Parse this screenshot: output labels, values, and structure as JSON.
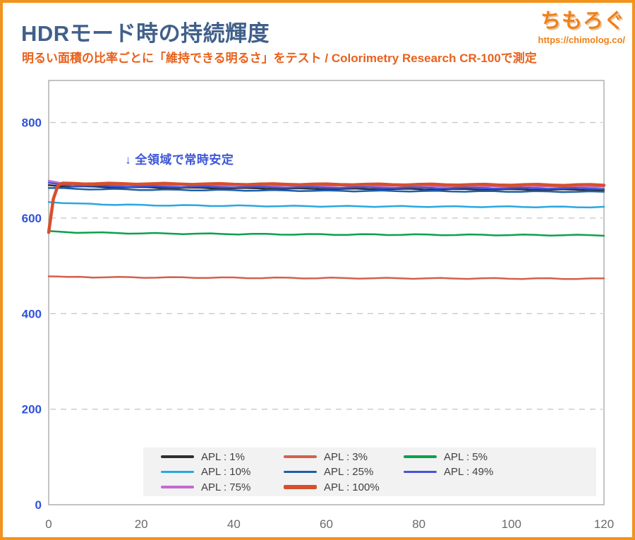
{
  "page": {
    "border_color": "#f0941f",
    "background": "#ffffff"
  },
  "header": {
    "title": "HDRモード時の持続輝度",
    "title_color": "#41608a",
    "subtitle": "明るい面積の比率ごとに「維持できる明るさ」をテスト / Colorimetry Research CR-100で測定",
    "subtitle_color": "#e8611c",
    "logo": {
      "text": "ちもろぐ",
      "url": "https://chimolog.co/",
      "color": "#f08119"
    }
  },
  "chart_data": {
    "type": "line",
    "title": "HDRモード時の持続輝度 (nits) vs 時間",
    "xlabel": "",
    "ylabel": "",
    "xlim": [
      0,
      120
    ],
    "ylim": [
      0,
      888
    ],
    "x_ticks": [
      0,
      20,
      40,
      60,
      80,
      100,
      120
    ],
    "y_ticks": [
      0,
      200,
      400,
      600,
      800
    ],
    "grid": "horizontal-dashed",
    "grid_color": "#c9c9c9",
    "frame_color": "#b0b0b0",
    "y_tick_color": "#2f52d9",
    "x_tick_color": "#6a6a6a",
    "legend_position": "bottom-inside",
    "annotation": {
      "text": "↓ 全領域で常時安定",
      "color": "#3d56d6",
      "x": 16.5,
      "y": 728
    },
    "series": [
      {
        "name": "APL : 1%",
        "color": "#2e2e2e",
        "width": 2.5,
        "points": [
          [
            0,
            669
          ],
          [
            2,
            667
          ],
          [
            10,
            665
          ],
          [
            30,
            663
          ],
          [
            60,
            661
          ],
          [
            90,
            660
          ],
          [
            120,
            659
          ]
        ]
      },
      {
        "name": "APL : 3%",
        "color": "#d2614c",
        "width": 2.5,
        "points": [
          [
            0,
            478
          ],
          [
            4,
            477
          ],
          [
            15,
            476
          ],
          [
            40,
            475
          ],
          [
            70,
            474
          ],
          [
            120,
            473
          ]
        ]
      },
      {
        "name": "APL : 5%",
        "color": "#0da04e",
        "width": 2.5,
        "points": [
          [
            0,
            572
          ],
          [
            6,
            570
          ],
          [
            20,
            568
          ],
          [
            50,
            566
          ],
          [
            85,
            565
          ],
          [
            120,
            564
          ]
        ]
      },
      {
        "name": "APL : 10%",
        "color": "#2aa7e0",
        "width": 2.5,
        "points": [
          [
            0,
            634
          ],
          [
            6,
            630
          ],
          [
            20,
            627
          ],
          [
            50,
            625
          ],
          [
            85,
            624
          ],
          [
            120,
            623
          ]
        ]
      },
      {
        "name": "APL : 25%",
        "color": "#1d5fa9",
        "width": 2.5,
        "points": [
          [
            0,
            663
          ],
          [
            6,
            661
          ],
          [
            25,
            659
          ],
          [
            60,
            657
          ],
          [
            90,
            656
          ],
          [
            120,
            655
          ]
        ]
      },
      {
        "name": "APL : 49%",
        "color": "#4554d8",
        "width": 2.5,
        "points": [
          [
            0,
            673
          ],
          [
            5,
            668
          ],
          [
            20,
            666
          ],
          [
            60,
            664
          ],
          [
            120,
            662
          ]
        ]
      },
      {
        "name": "APL : 75%",
        "color": "#c469cc",
        "width": 2.5,
        "points": [
          [
            0,
            678
          ],
          [
            4,
            671
          ],
          [
            15,
            669
          ],
          [
            60,
            667
          ],
          [
            120,
            665
          ]
        ]
      },
      {
        "name": "APL : 100%",
        "color": "#d6502d",
        "width": 4.5,
        "points": [
          [
            0,
            570
          ],
          [
            1,
            640
          ],
          [
            2,
            668
          ],
          [
            3,
            673
          ],
          [
            10,
            672
          ],
          [
            40,
            671
          ],
          [
            80,
            670
          ],
          [
            120,
            669
          ]
        ]
      }
    ],
    "draw_order": [
      0,
      6,
      5,
      4,
      3,
      2,
      1,
      7
    ]
  }
}
